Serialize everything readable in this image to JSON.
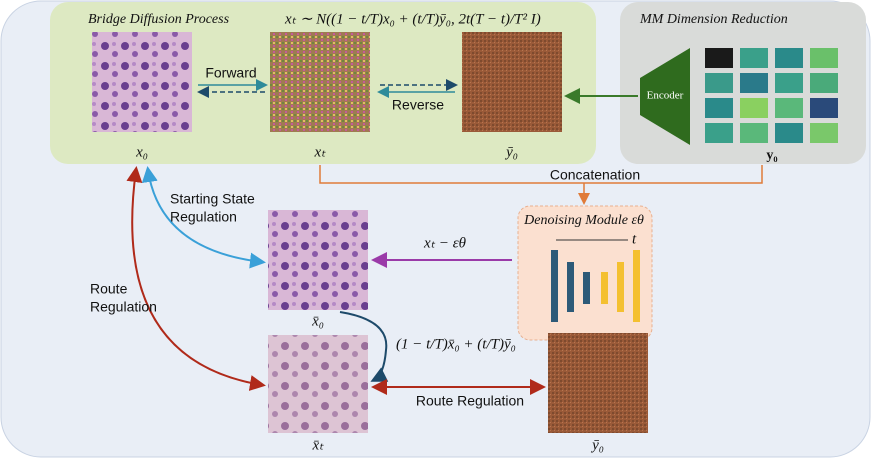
{
  "bridge_panel": {
    "title": "Bridge Diffusion Process",
    "formula": "xₜ ∼ N((1 − t/T)x₀ + (t/T)ȳ₀, 2t(T − t)/T² I)",
    "forward": "Forward",
    "reverse": "Reverse",
    "images": [
      "x₀",
      "xₜ",
      "ȳ₀"
    ]
  },
  "mm_panel": {
    "title": "MM Dimension Reduction",
    "encoder": "Encoder",
    "image": "y₀"
  },
  "concatenation": "Concatenation",
  "denoising": {
    "title": "Denoising Module εθ",
    "t": "t",
    "output": "xₜ − εθ"
  },
  "starting_state_regulation": [
    "Starting State",
    "Regulation"
  ],
  "route_regulation_left": [
    "Route",
    "Regulation"
  ],
  "route_regulation_bottom": "Route  Regulation",
  "interpolation": "(1 − t/T)x̄₀ + (t/T)ȳ₀",
  "outputs": [
    "x̄₀",
    "x̄ₜ",
    "ȳ₀"
  ]
}
